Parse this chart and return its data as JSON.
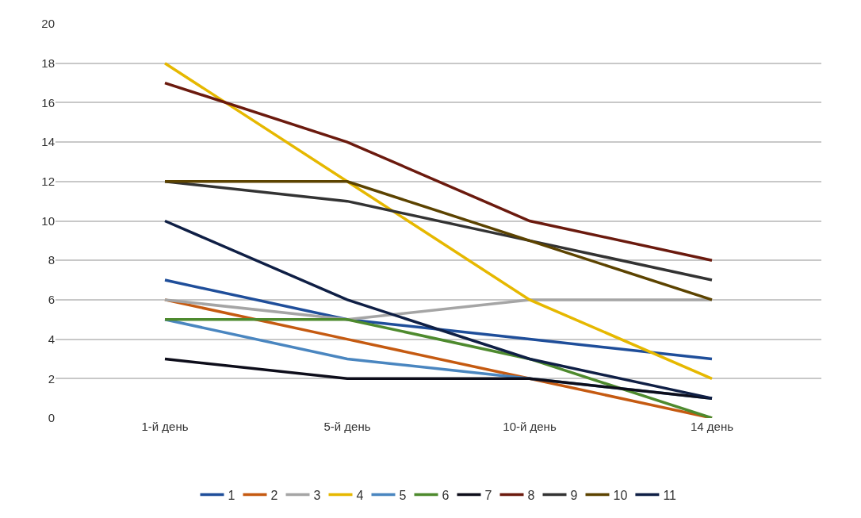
{
  "chart_data": {
    "type": "line",
    "categories": [
      "1-й день",
      "5-й день",
      "10-й день",
      "14 день"
    ],
    "series": [
      {
        "name": "1",
        "color": "#1f4e9a",
        "values": [
          7,
          5,
          4,
          3
        ]
      },
      {
        "name": "2",
        "color": "#c55a11",
        "values": [
          6,
          4,
          2,
          0
        ]
      },
      {
        "name": "3",
        "color": "#a5a5a5",
        "values": [
          6,
          5,
          6,
          6
        ]
      },
      {
        "name": "4",
        "color": "#e6b800",
        "values": [
          18,
          12,
          6,
          2
        ]
      },
      {
        "name": "5",
        "color": "#4a86c0",
        "values": [
          5,
          3,
          2,
          1
        ]
      },
      {
        "name": "6",
        "color": "#4e8a2e",
        "values": [
          5,
          5,
          3,
          0
        ]
      },
      {
        "name": "7",
        "color": "#0d0d1a",
        "values": [
          3,
          2,
          2,
          1
        ]
      },
      {
        "name": "8",
        "color": "#6b1a0e",
        "values": [
          17,
          14,
          10,
          8
        ]
      },
      {
        "name": "9",
        "color": "#333333",
        "values": [
          12,
          11,
          9,
          7
        ]
      },
      {
        "name": "10",
        "color": "#5c4300",
        "values": [
          12,
          12,
          9,
          6
        ]
      },
      {
        "name": "11",
        "color": "#0f1f45",
        "values": [
          10,
          6,
          3,
          1
        ]
      }
    ],
    "ylim": [
      0,
      20
    ],
    "yticks": [
      0,
      2,
      4,
      6,
      8,
      10,
      12,
      14,
      16,
      18,
      20
    ],
    "grid": "y",
    "legend": "bottom",
    "marker": "none",
    "line_style": "solid"
  }
}
